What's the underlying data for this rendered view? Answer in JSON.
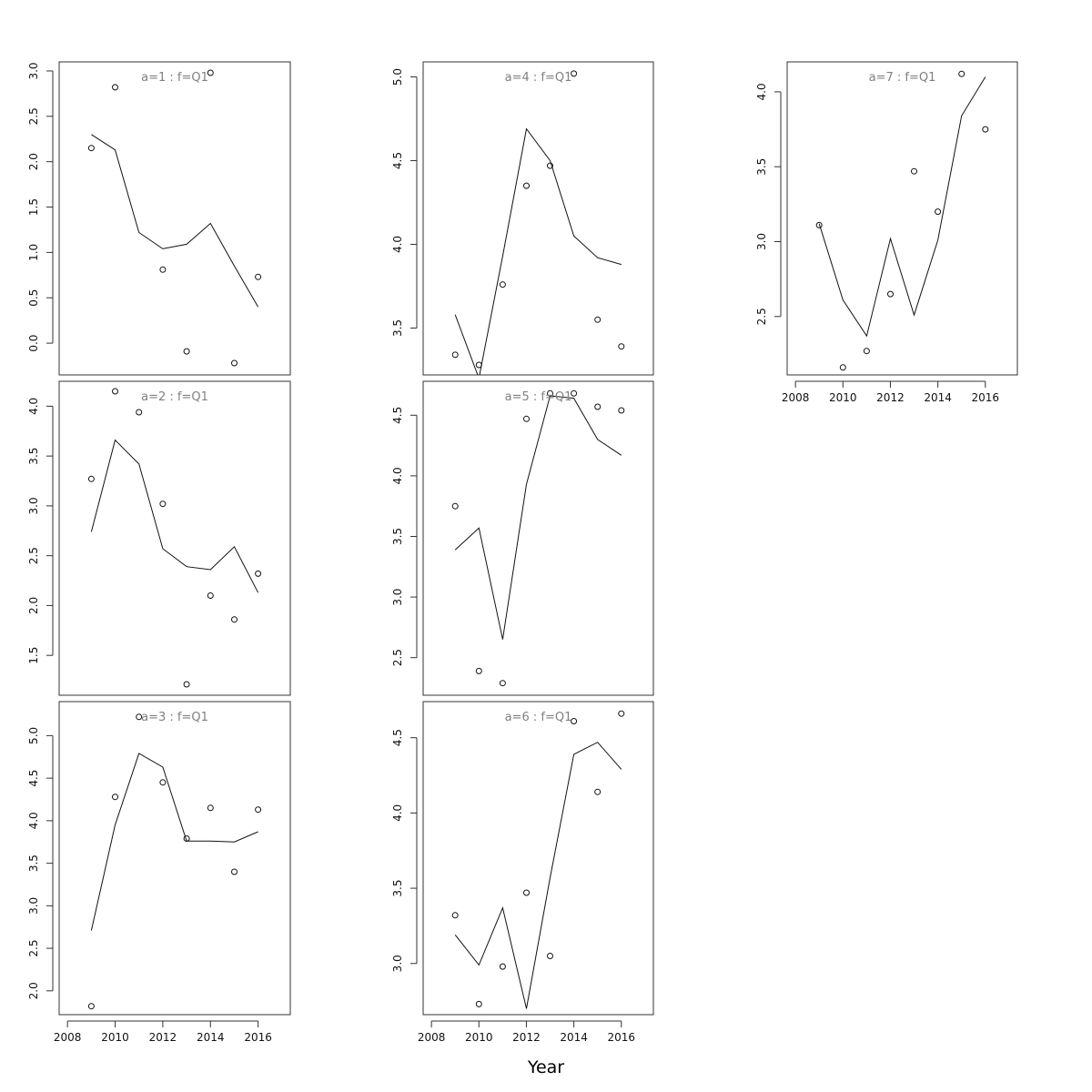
{
  "figure": {
    "xlabel": "Year"
  },
  "chart_data": [
    {
      "type": "line",
      "title": "a=1 : f=Q1",
      "x": [
        2009,
        2010,
        2011,
        2012,
        2013,
        2014,
        2015,
        2016
      ],
      "series": [
        {
          "values": [
            2.3,
            2.13,
            1.22,
            1.04,
            1.09,
            1.32,
            0.85,
            0.4
          ],
          "style": "line"
        },
        {
          "values": [
            2.15,
            2.82,
            null,
            0.81,
            -0.09,
            2.98,
            -0.22,
            0.73
          ],
          "style": "points"
        }
      ],
      "ylim": [
        -0.35,
        3.1
      ],
      "yticks": [
        0.0,
        0.5,
        1.0,
        1.5,
        2.0,
        2.5,
        3.0
      ],
      "xlim": [
        2007.65,
        2017.35
      ],
      "xticks": [
        2008,
        2010,
        2012,
        2014,
        2016
      ],
      "show_xaxis": false
    },
    {
      "type": "line",
      "title": "a=2 : f=Q1",
      "x": [
        2009,
        2010,
        2011,
        2012,
        2013,
        2014,
        2015,
        2016
      ],
      "series": [
        {
          "values": [
            2.74,
            3.66,
            3.42,
            2.57,
            2.39,
            2.36,
            2.59,
            2.13
          ],
          "style": "line"
        },
        {
          "values": [
            3.27,
            4.15,
            3.94,
            3.02,
            1.21,
            2.1,
            1.86,
            2.32
          ],
          "style": "points"
        }
      ],
      "ylim": [
        1.1,
        4.25
      ],
      "yticks": [
        1.5,
        2.0,
        2.5,
        3.0,
        3.5,
        4.0
      ],
      "xlim": [
        2007.65,
        2017.35
      ],
      "xticks": [
        2008,
        2010,
        2012,
        2014,
        2016
      ],
      "show_xaxis": false
    },
    {
      "type": "line",
      "title": "a=3 : f=Q1",
      "x": [
        2009,
        2010,
        2011,
        2012,
        2013,
        2014,
        2015,
        2016
      ],
      "series": [
        {
          "values": [
            2.71,
            3.95,
            4.79,
            4.63,
            3.76,
            3.76,
            3.75,
            3.87
          ],
          "style": "line"
        },
        {
          "values": [
            1.82,
            4.28,
            5.22,
            4.45,
            3.79,
            4.15,
            3.4,
            4.13
          ],
          "style": "points"
        }
      ],
      "ylim": [
        1.72,
        5.4
      ],
      "yticks": [
        2.0,
        2.5,
        3.0,
        3.5,
        4.0,
        4.5,
        5.0
      ],
      "xlim": [
        2007.65,
        2017.35
      ],
      "xticks": [
        2008,
        2010,
        2012,
        2014,
        2016
      ],
      "show_xaxis": true
    },
    {
      "type": "line",
      "title": "a=4 : f=Q1",
      "x": [
        2009,
        2010,
        2011,
        2012,
        2013,
        2014,
        2015,
        2016
      ],
      "series": [
        {
          "values": [
            3.58,
            3.2,
            3.93,
            4.69,
            4.5,
            4.05,
            3.92,
            3.88
          ],
          "style": "line"
        },
        {
          "values": [
            3.34,
            3.28,
            3.76,
            4.35,
            4.47,
            5.02,
            3.55,
            3.39
          ],
          "style": "points"
        }
      ],
      "ylim": [
        3.22,
        5.09
      ],
      "yticks": [
        3.5,
        4.0,
        4.5,
        5.0
      ],
      "xlim": [
        2007.65,
        2017.35
      ],
      "xticks": [
        2008,
        2010,
        2012,
        2014,
        2016
      ],
      "show_xaxis": false
    },
    {
      "type": "line",
      "title": "a=5 : f=Q1",
      "x": [
        2009,
        2010,
        2011,
        2012,
        2013,
        2014,
        2015,
        2016
      ],
      "series": [
        {
          "values": [
            3.39,
            3.57,
            2.65,
            3.93,
            4.66,
            4.64,
            4.3,
            4.17
          ],
          "style": "line"
        },
        {
          "values": [
            3.75,
            2.39,
            2.29,
            4.47,
            4.68,
            4.68,
            4.57,
            4.54
          ],
          "style": "points"
        }
      ],
      "ylim": [
        2.19,
        4.78
      ],
      "yticks": [
        2.5,
        3.0,
        3.5,
        4.0,
        4.5
      ],
      "xlim": [
        2007.65,
        2017.35
      ],
      "xticks": [
        2008,
        2010,
        2012,
        2014,
        2016
      ],
      "show_xaxis": false
    },
    {
      "type": "line",
      "title": "a=6 : f=Q1",
      "x": [
        2009,
        2010,
        2011,
        2012,
        2013,
        2014,
        2015,
        2016
      ],
      "series": [
        {
          "values": [
            3.19,
            2.99,
            3.37,
            2.7,
            3.57,
            4.39,
            4.47,
            4.29
          ],
          "style": "line"
        },
        {
          "values": [
            3.32,
            2.73,
            2.98,
            3.47,
            3.05,
            4.61,
            4.14,
            4.66
          ],
          "style": "points"
        }
      ],
      "ylim": [
        2.66,
        4.74
      ],
      "yticks": [
        3.0,
        3.5,
        4.0,
        4.5
      ],
      "xlim": [
        2007.65,
        2017.35
      ],
      "xticks": [
        2008,
        2010,
        2012,
        2014,
        2016
      ],
      "show_xaxis": true
    },
    {
      "type": "line",
      "title": "a=7 : f=Q1",
      "x": [
        2009,
        2010,
        2011,
        2012,
        2013,
        2014,
        2015,
        2016
      ],
      "series": [
        {
          "values": [
            3.12,
            2.61,
            2.37,
            3.02,
            2.51,
            3.01,
            3.84,
            4.1
          ],
          "style": "line"
        },
        {
          "values": [
            3.11,
            2.16,
            2.27,
            2.65,
            3.47,
            3.2,
            4.12,
            3.75
          ],
          "style": "points"
        }
      ],
      "ylim": [
        2.11,
        4.2
      ],
      "yticks": [
        2.5,
        3.0,
        3.5,
        4.0
      ],
      "xlim": [
        2007.65,
        2017.35
      ],
      "xticks": [
        2008,
        2010,
        2012,
        2014,
        2016
      ],
      "show_xaxis": true
    }
  ]
}
